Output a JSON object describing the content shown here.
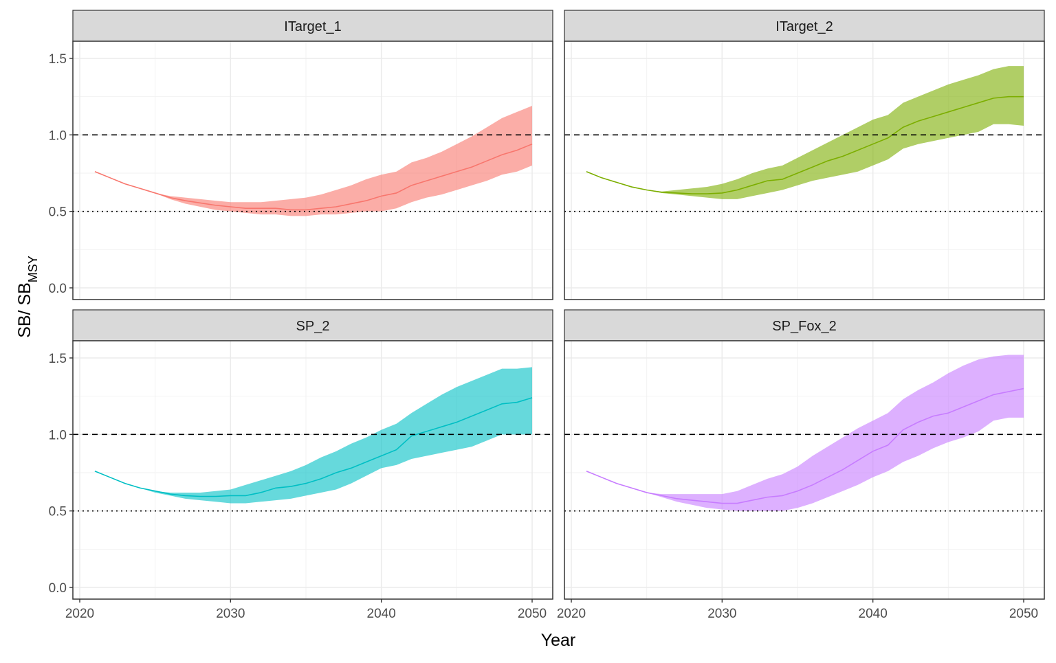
{
  "chart_data": {
    "type": "line",
    "xlabel": "Year",
    "ylabel_main": "SB/ SB",
    "ylabel_sub": "MSY",
    "xlim": [
      2020,
      2050
    ],
    "ylim": [
      0.0,
      1.5
    ],
    "x_ticks": [
      "2020",
      "2030",
      "2040",
      "2050"
    ],
    "y_ticks": [
      "0.0",
      "0.5",
      "1.0",
      "1.5"
    ],
    "reference_lines": [
      {
        "name": "target",
        "y": 1.0,
        "style": "dashed"
      },
      {
        "name": "limit",
        "y": 0.5,
        "style": "dotted"
      }
    ],
    "years": [
      2021,
      2022,
      2023,
      2024,
      2025,
      2026,
      2027,
      2028,
      2029,
      2030,
      2031,
      2032,
      2033,
      2034,
      2035,
      2036,
      2037,
      2038,
      2039,
      2040,
      2041,
      2042,
      2043,
      2044,
      2045,
      2046,
      2047,
      2048,
      2049,
      2050
    ],
    "panels": [
      {
        "name": "ITarget_1",
        "color": "#F8766D",
        "median": [
          0.76,
          0.72,
          0.68,
          0.65,
          0.62,
          0.59,
          0.57,
          0.555,
          0.54,
          0.53,
          0.52,
          0.52,
          0.52,
          0.51,
          0.51,
          0.52,
          0.53,
          0.55,
          0.57,
          0.6,
          0.62,
          0.67,
          0.7,
          0.73,
          0.76,
          0.79,
          0.83,
          0.87,
          0.9,
          0.94
        ],
        "lower": [
          0.76,
          0.72,
          0.68,
          0.65,
          0.62,
          0.58,
          0.55,
          0.53,
          0.51,
          0.5,
          0.49,
          0.48,
          0.48,
          0.47,
          0.47,
          0.48,
          0.48,
          0.49,
          0.5,
          0.5,
          0.52,
          0.56,
          0.59,
          0.61,
          0.64,
          0.67,
          0.7,
          0.74,
          0.76,
          0.8
        ],
        "upper": [
          0.76,
          0.72,
          0.68,
          0.65,
          0.62,
          0.6,
          0.59,
          0.58,
          0.57,
          0.56,
          0.56,
          0.56,
          0.57,
          0.58,
          0.59,
          0.61,
          0.64,
          0.67,
          0.71,
          0.74,
          0.76,
          0.82,
          0.85,
          0.89,
          0.94,
          0.99,
          1.05,
          1.11,
          1.15,
          1.19
        ]
      },
      {
        "name": "ITarget_2",
        "color": "#7CAE00",
        "median": [
          0.76,
          0.72,
          0.69,
          0.66,
          0.64,
          0.625,
          0.62,
          0.615,
          0.615,
          0.62,
          0.64,
          0.67,
          0.7,
          0.71,
          0.75,
          0.79,
          0.83,
          0.86,
          0.9,
          0.94,
          0.98,
          1.05,
          1.09,
          1.12,
          1.15,
          1.18,
          1.21,
          1.24,
          1.25,
          1.25
        ],
        "lower": [
          0.76,
          0.72,
          0.69,
          0.66,
          0.64,
          0.62,
          0.61,
          0.6,
          0.59,
          0.58,
          0.58,
          0.6,
          0.62,
          0.64,
          0.67,
          0.7,
          0.72,
          0.74,
          0.76,
          0.8,
          0.84,
          0.91,
          0.94,
          0.96,
          0.98,
          1.0,
          1.02,
          1.07,
          1.07,
          1.06
        ],
        "upper": [
          0.76,
          0.72,
          0.69,
          0.66,
          0.64,
          0.63,
          0.64,
          0.65,
          0.66,
          0.68,
          0.71,
          0.75,
          0.78,
          0.8,
          0.85,
          0.9,
          0.95,
          1.0,
          1.05,
          1.1,
          1.13,
          1.21,
          1.25,
          1.29,
          1.33,
          1.36,
          1.39,
          1.43,
          1.45,
          1.45
        ]
      },
      {
        "name": "SP_2",
        "color": "#00BFC4",
        "median": [
          0.76,
          0.72,
          0.68,
          0.65,
          0.63,
          0.61,
          0.6,
          0.595,
          0.595,
          0.6,
          0.6,
          0.62,
          0.65,
          0.66,
          0.68,
          0.71,
          0.75,
          0.78,
          0.82,
          0.86,
          0.9,
          0.99,
          1.02,
          1.05,
          1.08,
          1.12,
          1.16,
          1.2,
          1.21,
          1.24
        ],
        "lower": [
          0.76,
          0.72,
          0.68,
          0.65,
          0.62,
          0.6,
          0.58,
          0.57,
          0.56,
          0.55,
          0.55,
          0.56,
          0.57,
          0.58,
          0.6,
          0.62,
          0.64,
          0.68,
          0.73,
          0.78,
          0.8,
          0.84,
          0.86,
          0.88,
          0.9,
          0.92,
          0.96,
          1.0,
          1.0,
          1.0
        ],
        "upper": [
          0.76,
          0.72,
          0.68,
          0.65,
          0.63,
          0.62,
          0.62,
          0.62,
          0.63,
          0.64,
          0.67,
          0.7,
          0.73,
          0.76,
          0.8,
          0.85,
          0.89,
          0.94,
          0.98,
          1.03,
          1.07,
          1.14,
          1.2,
          1.26,
          1.31,
          1.35,
          1.39,
          1.43,
          1.43,
          1.44
        ]
      },
      {
        "name": "SP_Fox_2",
        "color": "#C77CFF",
        "median": [
          0.76,
          0.72,
          0.68,
          0.65,
          0.62,
          0.6,
          0.58,
          0.57,
          0.56,
          0.55,
          0.55,
          0.57,
          0.59,
          0.6,
          0.63,
          0.67,
          0.72,
          0.77,
          0.83,
          0.89,
          0.93,
          1.03,
          1.08,
          1.12,
          1.14,
          1.18,
          1.22,
          1.26,
          1.28,
          1.3
        ],
        "lower": [
          0.76,
          0.72,
          0.68,
          0.65,
          0.62,
          0.59,
          0.56,
          0.54,
          0.52,
          0.51,
          0.5,
          0.5,
          0.5,
          0.5,
          0.52,
          0.55,
          0.59,
          0.63,
          0.67,
          0.72,
          0.76,
          0.82,
          0.86,
          0.91,
          0.95,
          0.98,
          1.02,
          1.09,
          1.11,
          1.11
        ],
        "upper": [
          0.76,
          0.72,
          0.68,
          0.65,
          0.62,
          0.61,
          0.61,
          0.61,
          0.61,
          0.61,
          0.63,
          0.67,
          0.71,
          0.74,
          0.79,
          0.86,
          0.92,
          0.98,
          1.04,
          1.09,
          1.14,
          1.23,
          1.29,
          1.34,
          1.4,
          1.45,
          1.49,
          1.51,
          1.52,
          1.52
        ]
      }
    ]
  }
}
